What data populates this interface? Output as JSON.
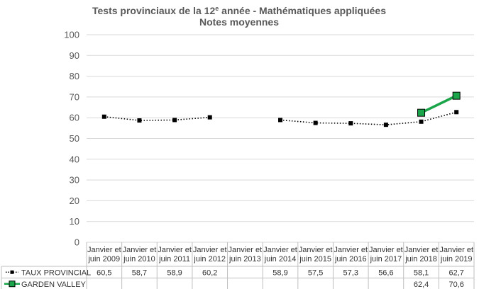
{
  "chart_data": {
    "type": "line",
    "title_line1_pre": "Tests provinciaux de la 12",
    "title_line1_sup": "e",
    "title_line1_post": " année - Mathématiques appliquées",
    "title_line2": "Notes moyennes",
    "categories": [
      [
        "Janvier et",
        "juin 2009"
      ],
      [
        "Janvier et",
        "juin 2010"
      ],
      [
        "Janvier et",
        "juin 2011"
      ],
      [
        "Janvier et",
        "juin 2012"
      ],
      [
        "Janvier et",
        "juin 2013"
      ],
      [
        "Janvier et",
        "juin 2014"
      ],
      [
        "Janvier et",
        "juin 2015"
      ],
      [
        "Janvier et",
        "juin 2016"
      ],
      [
        "Janvier et",
        "juin 2017"
      ],
      [
        "Janvier et",
        "juin 2018"
      ],
      [
        "Janvier et",
        "juin 2019"
      ]
    ],
    "ylim": [
      0,
      100
    ],
    "yticks": [
      "0",
      "10",
      "20",
      "30",
      "40",
      "50",
      "60",
      "70",
      "80",
      "90",
      "100"
    ],
    "gridlines": true,
    "legend_position": "table-left",
    "series": [
      {
        "name": "TAUX PROVINCIAL",
        "color": "#000000",
        "style": "dotted",
        "values": [
          60.5,
          58.7,
          58.9,
          60.2,
          null,
          58.9,
          57.5,
          57.3,
          56.6,
          58.1,
          62.7
        ],
        "labels": [
          "60,5",
          "58,7",
          "58,9",
          "60,2",
          "",
          "58,9",
          "57,5",
          "57,3",
          "56,6",
          "58,1",
          "62,7"
        ]
      },
      {
        "name": "GARDEN VALLEY",
        "color": "#1aa54a",
        "style": "solid",
        "values": [
          null,
          null,
          null,
          null,
          null,
          null,
          null,
          null,
          null,
          62.4,
          70.6
        ],
        "labels": [
          "",
          "",
          "",
          "",
          "",
          "",
          "",
          "",
          "",
          "62,4",
          "70,6"
        ]
      }
    ]
  }
}
